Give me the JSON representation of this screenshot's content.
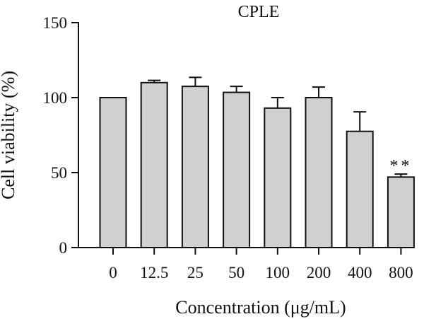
{
  "chart_data": {
    "type": "bar",
    "title": "CPLE",
    "xlabel": "Concentration (μg/mL)",
    "ylabel": "Cell viability (%)",
    "categories": [
      "0",
      "12.5",
      "25",
      "50",
      "100",
      "200",
      "400",
      "800"
    ],
    "values": [
      100,
      110,
      107.5,
      103.5,
      93,
      100,
      77.5,
      47
    ],
    "errors": [
      0,
      1.5,
      6,
      4,
      7,
      7,
      13,
      2
    ],
    "ylim": [
      0,
      150
    ],
    "yticks": [
      "0",
      "50",
      "100",
      "150"
    ],
    "annotations": [
      {
        "category": "800",
        "text": "**"
      }
    ],
    "bar_color": "#d0d0d0",
    "edge_color": "#111111",
    "grid": false,
    "legend": "none"
  }
}
